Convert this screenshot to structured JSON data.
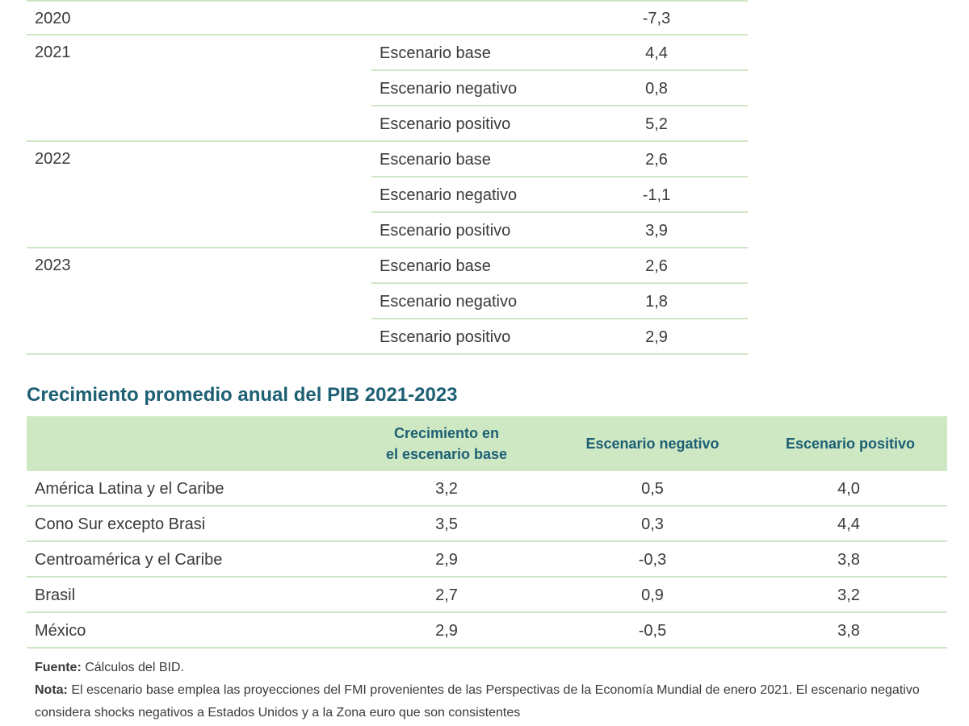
{
  "top_table": {
    "year_2020": {
      "year": "2020",
      "value": "-7,3"
    },
    "blocks": [
      {
        "year": "2021",
        "rows": [
          {
            "scenario": "Escenario base",
            "value": "4,4"
          },
          {
            "scenario": "Escenario negativo",
            "value": "0,8"
          },
          {
            "scenario": "Escenario positivo",
            "value": "5,2"
          }
        ]
      },
      {
        "year": "2022",
        "rows": [
          {
            "scenario": "Escenario base",
            "value": "2,6"
          },
          {
            "scenario": "Escenario negativo",
            "value": "-1,1"
          },
          {
            "scenario": "Escenario positivo",
            "value": "3,9"
          }
        ]
      },
      {
        "year": "2023",
        "rows": [
          {
            "scenario": "Escenario base",
            "value": "2,6"
          },
          {
            "scenario": "Escenario negativo",
            "value": "1,8"
          },
          {
            "scenario": "Escenario positivo",
            "value": "2,9"
          }
        ]
      }
    ]
  },
  "growth_section": {
    "title": "Crecimiento promedio anual del PIB 2021-2023",
    "headers": {
      "col1_line1": "Crecimiento en",
      "col1_line2": "el escenario base",
      "col2": "Escenario negativo",
      "col3": "Escenario positivo"
    },
    "rows": [
      {
        "region": "América Latina y el Caribe",
        "base": "3,2",
        "neg": "0,5",
        "pos": "4,0"
      },
      {
        "region": "Cono Sur excepto Brasi",
        "base": "3,5",
        "neg": "0,3",
        "pos": "4,4"
      },
      {
        "region": "Centroamérica y el Caribe",
        "base": "2,9",
        "neg": "-0,3",
        "pos": "3,8"
      },
      {
        "region": "Brasil",
        "base": "2,7",
        "neg": "0,9",
        "pos": "3,2"
      },
      {
        "region": "México",
        "base": "2,9",
        "neg": "-0,5",
        "pos": "3,8"
      }
    ]
  },
  "notes": {
    "source_label": "Fuente:",
    "source_text": " Cálculos del BID.",
    "note_label": "Nota:",
    "note_text": " El escenario base emplea las proyecciones del FMI provenientes de las Perspectivas de la Economía Mundial de enero 2021. El escenario negativo considera shocks negativos a Estados Unidos y a la Zona euro que son consistentes"
  },
  "colors": {
    "accent_title": "#1d5f73",
    "header_bg": "#cfe8c4",
    "rule": "#cfe6c6"
  }
}
